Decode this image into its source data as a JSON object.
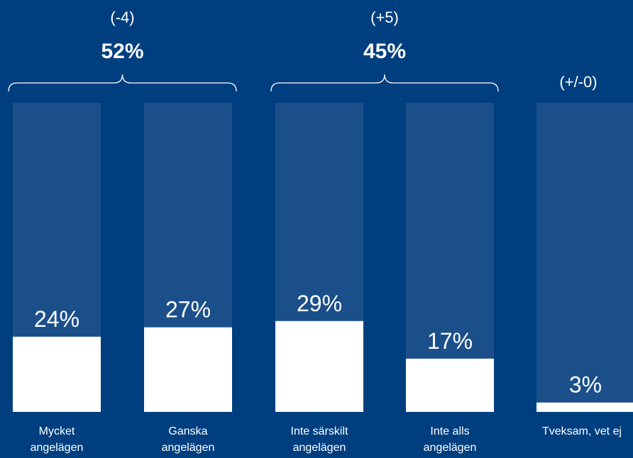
{
  "colors": {
    "background": "#003f7f",
    "track": "#1b4f8a",
    "bar": "#ffffff",
    "text": "#ffffff"
  },
  "chart_data": {
    "type": "bar",
    "categories": [
      [
        "Mycket",
        "angelägen"
      ],
      [
        "Ganska",
        "angelägen"
      ],
      [
        "Inte särskilt",
        "angelägen"
      ],
      [
        "Inte alls",
        "angelägen"
      ],
      [
        "Tveksam, vet ej"
      ]
    ],
    "values": [
      24,
      27,
      29,
      17,
      3
    ],
    "value_labels": [
      "24%",
      "27%",
      "29%",
      "17%",
      "3%"
    ],
    "ylim": [
      0,
      100
    ],
    "groups": [
      {
        "members": [
          0,
          1
        ],
        "total_label": "52%",
        "change_label": "(-4)"
      },
      {
        "members": [
          2,
          3
        ],
        "total_label": "45%",
        "change_label": "(+5)"
      },
      {
        "members": [
          4
        ],
        "total_label": "",
        "change_label": "(+/-0)"
      }
    ],
    "title": "",
    "xlabel": "",
    "ylabel": "",
    "grid": false,
    "legend": "none"
  }
}
